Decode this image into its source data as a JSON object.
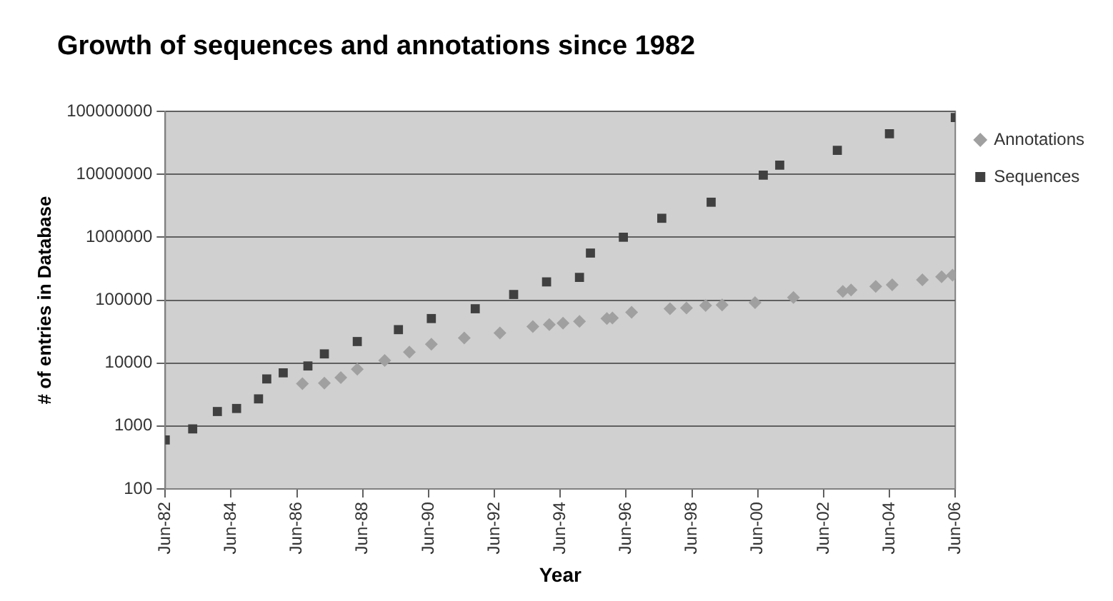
{
  "chart_data": {
    "type": "scatter",
    "title": "Growth of sequences and annotations since 1982",
    "xlabel": "Year",
    "ylabel": "# of entries in Database",
    "log": "y",
    "grid": "y",
    "legend": "top right",
    "xlim": [
      "1982-06",
      "2006-06"
    ],
    "xticks": [
      {
        "value": "1982-06",
        "label": "Jun-82"
      },
      {
        "value": "1984-06",
        "label": "Jun-84"
      },
      {
        "value": "1986-06",
        "label": "Jun-86"
      },
      {
        "value": "1988-06",
        "label": "Jun-88"
      },
      {
        "value": "1990-06",
        "label": "Jun-90"
      },
      {
        "value": "1992-06",
        "label": "Jun-92"
      },
      {
        "value": "1994-06",
        "label": "Jun-94"
      },
      {
        "value": "1996-06",
        "label": "Jun-96"
      },
      {
        "value": "1998-06",
        "label": "Jun-98"
      },
      {
        "value": "2000-06",
        "label": "Jun-00"
      },
      {
        "value": "2002-06",
        "label": "Jun-02"
      },
      {
        "value": "2004-06",
        "label": "Jun-04"
      },
      {
        "value": "2006-06",
        "label": "Jun-06"
      }
    ],
    "ylim": [
      100,
      100000000
    ],
    "yticks": [
      100,
      1000,
      10000,
      100000,
      1000000,
      10000000,
      100000000
    ],
    "series": [
      {
        "name": "Annotations",
        "color": "#a0a0a0",
        "marker": "diamond",
        "x": [
          "1986-08",
          "1987-04",
          "1987-10",
          "1988-04",
          "1989-02",
          "1989-11",
          "1990-07",
          "1991-07",
          "1992-08",
          "1993-08",
          "1994-02",
          "1994-07",
          "1995-01",
          "1995-11",
          "1996-01",
          "1996-08",
          "1997-10",
          "1998-04",
          "1998-11",
          "1999-05",
          "2000-05",
          "2001-07",
          "2003-01",
          "2003-04",
          "2004-01",
          "2004-07",
          "2005-06",
          "2006-01",
          "2006-05"
        ],
        "values": [
          4700,
          4800,
          5900,
          8000,
          11000,
          15000,
          20000,
          25000,
          30000,
          38000,
          41000,
          43000,
          46000,
          51000,
          52000,
          64000,
          73000,
          75000,
          82000,
          84000,
          91000,
          110000,
          138000,
          145000,
          165000,
          175000,
          210000,
          235000,
          250000
        ]
      },
      {
        "name": "Sequences",
        "color": "#404040",
        "marker": "square",
        "x": [
          "1982-06",
          "1983-04",
          "1984-01",
          "1984-08",
          "1985-04",
          "1985-07",
          "1986-01",
          "1986-10",
          "1987-04",
          "1988-04",
          "1989-07",
          "1990-07",
          "1991-11",
          "1993-01",
          "1994-01",
          "1995-01",
          "1995-05",
          "1996-05",
          "1997-07",
          "1999-01",
          "2000-08",
          "2001-02",
          "2002-11",
          "2004-06",
          "2006-06"
        ],
        "values": [
          600,
          900,
          1700,
          1900,
          2700,
          5600,
          7000,
          9000,
          14000,
          22000,
          34000,
          51000,
          73000,
          123000,
          195000,
          230000,
          560000,
          1000000,
          2000000,
          3600000,
          9700000,
          14000000,
          24000000,
          44000000,
          80000000
        ]
      }
    ]
  }
}
